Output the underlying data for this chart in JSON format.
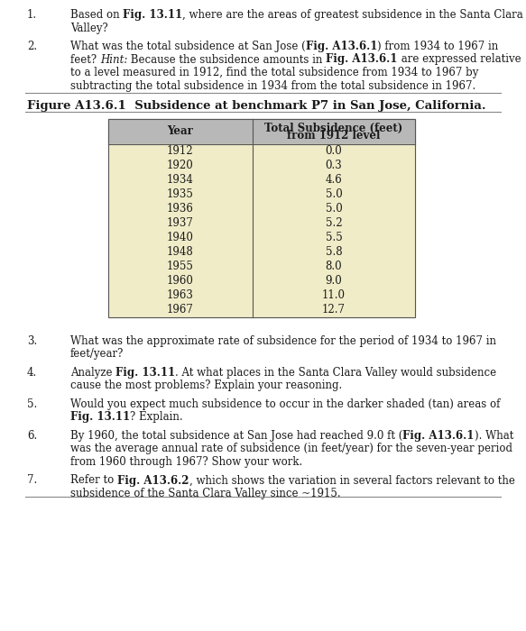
{
  "background_color": "#ffffff",
  "text_color": "#1a1a1a",
  "separator_color": "#888888",
  "table_header_bg": "#b8b8b8",
  "table_data_bg": "#f0ecc8",
  "font_size_body": 8.5,
  "font_size_figure_label": 9.5,
  "font_size_table": 8.5,
  "table_years": [
    "1912",
    "1920",
    "1934",
    "1935",
    "1936",
    "1937",
    "1940",
    "1948",
    "1955",
    "1960",
    "1963",
    "1967"
  ],
  "table_values": [
    "0.0",
    "0.3",
    "4.6",
    "5.0",
    "5.0",
    "5.2",
    "5.5",
    "5.8",
    "8.0",
    "9.0",
    "11.0",
    "12.7"
  ]
}
